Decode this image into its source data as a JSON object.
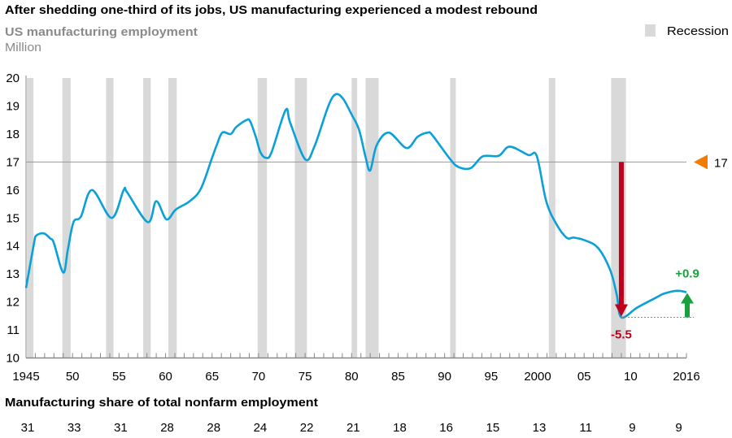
{
  "chart_data": {
    "type": "line",
    "title": "After shedding one-third of its jobs, US manufacturing experienced a modest rebound",
    "subtitle": "US manufacturing employment",
    "ylabel": "Million",
    "ylim": [
      10,
      20
    ],
    "yticks": [
      "10",
      "11",
      "12",
      "13",
      "14",
      "15",
      "16",
      "17",
      "18",
      "19",
      "20"
    ],
    "xlim": [
      1945,
      2016
    ],
    "xtick_years": [
      1945,
      1950,
      1955,
      1960,
      1965,
      1970,
      1975,
      1980,
      1985,
      1990,
      1995,
      2000,
      2005,
      2010,
      2016
    ],
    "xtick_labels": [
      "1945",
      "50",
      "55",
      "60",
      "65",
      "70",
      "75",
      "80",
      "85",
      "90",
      "95",
      "2000",
      "05",
      "10",
      "2016"
    ],
    "grid": false,
    "legend": {
      "label": "Recession",
      "placement": "top-right"
    },
    "colors": {
      "line": "#0aa0d8",
      "recession": "#d9d9d9",
      "drop_arrow": "#c0001a",
      "rebound_arrow": "#1aa03c",
      "marker": "#f07d00",
      "reference_line": "#999999"
    },
    "series": [
      {
        "x": [
          1945.0,
          1945.85,
          1946.1,
          1946.9,
          1947.6,
          1948.0,
          1949.0,
          1949.5,
          1950.1,
          1950.9,
          1952.1,
          1954.2,
          1955.5,
          1955.9,
          1958.1,
          1959.0,
          1960.1,
          1961.1,
          1962.6,
          1963.8,
          1965.0,
          1965.5,
          1966.1,
          1967.0,
          1967.6,
          1968.7,
          1969.1,
          1969.7,
          1970.2,
          1970.8,
          1971.4,
          1972.9,
          1973.4,
          1975.0,
          1976.0,
          1977.5,
          1978.3,
          1979.1,
          1980.0,
          1980.8,
          1981.5,
          1982.0,
          1982.7,
          1984.0,
          1985.9,
          1987.1,
          1988.2,
          1988.7,
          1990.6,
          1991.5,
          1992.8,
          1994.1,
          1995.8,
          1997.0,
          1999.0,
          1999.9,
          2000.9,
          2001.9,
          2003.1,
          2003.9,
          2005.1,
          2006.5,
          2007.8,
          2008.5,
          2009.0,
          2010.7,
          2012.7,
          2013.6,
          2015.0,
          2016.0
        ],
        "y": [
          12.5,
          14.08,
          14.37,
          14.45,
          14.27,
          14.1,
          13.05,
          13.88,
          14.85,
          15.05,
          16.0,
          15.0,
          16.0,
          15.9,
          14.85,
          15.6,
          14.95,
          15.3,
          15.6,
          16.05,
          17.15,
          17.6,
          18.05,
          18.0,
          18.25,
          18.5,
          18.45,
          17.9,
          17.35,
          17.15,
          17.35,
          18.85,
          18.4,
          17.1,
          17.55,
          19.0,
          19.42,
          19.25,
          18.7,
          18.15,
          17.18,
          16.7,
          17.6,
          18.05,
          17.5,
          17.9,
          18.05,
          17.95,
          17.1,
          16.82,
          16.78,
          17.2,
          17.22,
          17.55,
          17.25,
          17.22,
          15.63,
          14.85,
          14.3,
          14.3,
          14.2,
          13.93,
          13.14,
          12.27,
          11.45,
          11.8,
          12.15,
          12.3,
          12.4,
          12.35
        ]
      }
    ],
    "recessions": [
      [
        1945.1,
        1945.8
      ],
      [
        1948.9,
        1949.8
      ],
      [
        1953.6,
        1954.4
      ],
      [
        1957.6,
        1958.4
      ],
      [
        1960.3,
        1961.2
      ],
      [
        1969.9,
        1970.9
      ],
      [
        1973.9,
        1975.2
      ],
      [
        1980.0,
        1980.6
      ],
      [
        1981.5,
        1982.9
      ],
      [
        1990.6,
        1991.2
      ],
      [
        2001.2,
        2001.9
      ],
      [
        2007.9,
        2009.5
      ]
    ],
    "reference": {
      "value": 17,
      "label": "17"
    },
    "annotations": {
      "drop": {
        "label": "-5.5",
        "year": 2009,
        "from": 17,
        "to": 11.45
      },
      "rebound": {
        "label": "+0.9",
        "year": 2016,
        "from": 11.45,
        "to": 12.35
      }
    },
    "share": {
      "title": "Manufacturing share of total nonfarm employment",
      "years": [
        1945,
        1950,
        1955,
        1960,
        1965,
        1970,
        1975,
        1980,
        1985,
        1990,
        1995,
        2000,
        2005,
        2010,
        2015
      ],
      "values": [
        "31",
        "33",
        "31",
        "28",
        "28",
        "24",
        "22",
        "21",
        "18",
        "16",
        "15",
        "13",
        "11",
        "9",
        "9"
      ]
    }
  }
}
